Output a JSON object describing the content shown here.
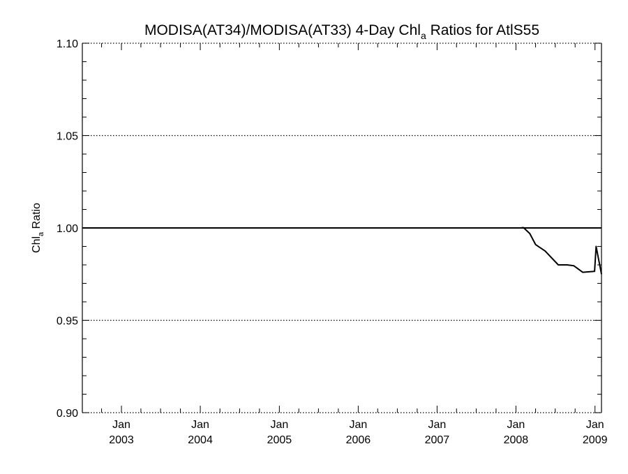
{
  "chart_data": {
    "type": "line",
    "title": "MODISA(AT34)/MODISA(AT33) 4-Day Chl",
    "title_subscript": "a",
    "title_suffix": " Ratios for AtlS55",
    "ylabel": "Chl",
    "ylabel_subscript": "a",
    "ylabel_suffix": " Ratio",
    "ylim": [
      0.9,
      1.1
    ],
    "yticks": [
      {
        "value": 0.9,
        "label": "0.90"
      },
      {
        "value": 0.95,
        "label": "0.95"
      },
      {
        "value": 1.0,
        "label": "1.00"
      },
      {
        "value": 1.05,
        "label": "1.05"
      },
      {
        "value": 1.1,
        "label": "1.10"
      }
    ],
    "xlim": [
      "2002-07-04",
      "2009-01-31"
    ],
    "xticks": [
      {
        "date": "2003-01-01",
        "month": "Jan",
        "year": "2003"
      },
      {
        "date": "2004-01-01",
        "month": "Jan",
        "year": "2004"
      },
      {
        "date": "2005-01-01",
        "month": "Jan",
        "year": "2005"
      },
      {
        "date": "2006-01-01",
        "month": "Jan",
        "year": "2006"
      },
      {
        "date": "2007-01-01",
        "month": "Jan",
        "year": "2007"
      },
      {
        "date": "2008-01-01",
        "month": "Jan",
        "year": "2008"
      },
      {
        "date": "2009-01-01",
        "month": "Jan",
        "year": "2009"
      }
    ],
    "grid": "dotted horizontal at major y ticks",
    "reference_line": 1.0,
    "series": [
      {
        "points": [
          {
            "x": "2008-01-20",
            "y": 1.0
          },
          {
            "x": "2008-02-05",
            "y": 1.0002
          },
          {
            "x": "2008-03-05",
            "y": 0.997
          },
          {
            "x": "2008-04-01",
            "y": 0.991
          },
          {
            "x": "2008-05-15",
            "y": 0.9875
          },
          {
            "x": "2008-07-15",
            "y": 0.98
          },
          {
            "x": "2008-08-25",
            "y": 0.98
          },
          {
            "x": "2008-09-25",
            "y": 0.9795
          },
          {
            "x": "2008-11-05",
            "y": 0.976
          },
          {
            "x": "2008-12-30",
            "y": 0.9765
          },
          {
            "x": "2009-01-06",
            "y": 0.99
          },
          {
            "x": "2009-01-31",
            "y": 0.975
          }
        ]
      }
    ]
  }
}
